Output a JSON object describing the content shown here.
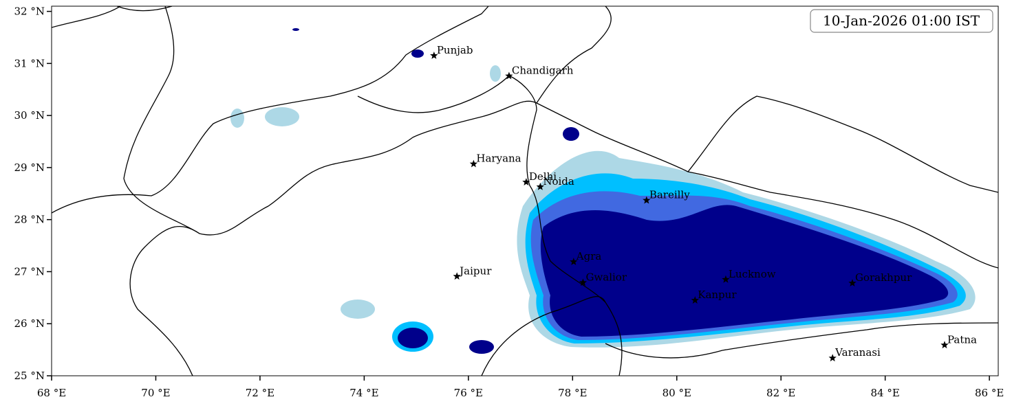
{
  "map": {
    "timestamp": "10-Jan-2026 01:00 IST",
    "xlim": [
      68,
      86.17
    ],
    "ylim": [
      25,
      32.1
    ],
    "xticks": [
      {
        "value": 68,
        "label": "68 °E"
      },
      {
        "value": 70,
        "label": "70 °E"
      },
      {
        "value": 72,
        "label": "72 °E"
      },
      {
        "value": 74,
        "label": "74 °E"
      },
      {
        "value": 76,
        "label": "76 °E"
      },
      {
        "value": 78,
        "label": "78 °E"
      },
      {
        "value": 80,
        "label": "80 °E"
      },
      {
        "value": 82,
        "label": "82 °E"
      },
      {
        "value": 84,
        "label": "84 °E"
      },
      {
        "value": 86,
        "label": "86 °E"
      }
    ],
    "yticks": [
      {
        "value": 25,
        "label": "25 °N"
      },
      {
        "value": 26,
        "label": "26 °N"
      },
      {
        "value": 27,
        "label": "27 °N"
      },
      {
        "value": 28,
        "label": "28 °N"
      },
      {
        "value": 29,
        "label": "29 °N"
      },
      {
        "value": 30,
        "label": "30 °N"
      },
      {
        "value": 31,
        "label": "31 °N"
      },
      {
        "value": 32,
        "label": "32 °N"
      }
    ],
    "cities": [
      {
        "name": "Punjab",
        "lon": 75.34,
        "lat": 31.15
      },
      {
        "name": "Chandigarh",
        "lon": 76.78,
        "lat": 30.76
      },
      {
        "name": "Haryana",
        "lon": 76.1,
        "lat": 29.07
      },
      {
        "name": "Delhi",
        "lon": 77.11,
        "lat": 28.72
      },
      {
        "name": "Noida",
        "lon": 77.38,
        "lat": 28.63
      },
      {
        "name": "Bareilly",
        "lon": 79.42,
        "lat": 28.37
      },
      {
        "name": "Agra",
        "lon": 78.02,
        "lat": 27.19
      },
      {
        "name": "Jaipur",
        "lon": 75.78,
        "lat": 26.91
      },
      {
        "name": "Gwalior",
        "lon": 78.2,
        "lat": 26.79
      },
      {
        "name": "Lucknow",
        "lon": 80.94,
        "lat": 26.85
      },
      {
        "name": "Kanpur",
        "lon": 80.35,
        "lat": 26.45
      },
      {
        "name": "Gorakhpur",
        "lon": 83.37,
        "lat": 26.78
      },
      {
        "name": "Varanasi",
        "lon": 82.99,
        "lat": 25.34
      },
      {
        "name": "Patna",
        "lon": 85.14,
        "lat": 25.59
      }
    ]
  }
}
